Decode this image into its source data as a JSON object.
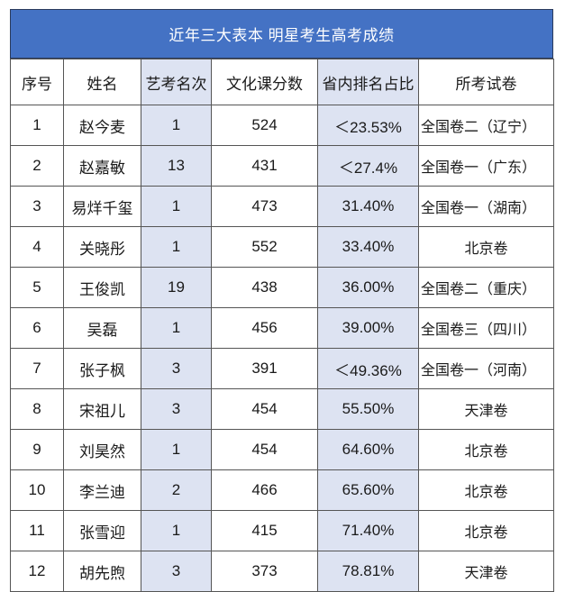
{
  "title": "近年三大表本 明星考生高考成绩",
  "columns": [
    "序号",
    "姓名",
    "艺考名次",
    "文化课分数",
    "省内排名占比",
    "所考试卷"
  ],
  "rows": [
    {
      "seq": "1",
      "name": "赵今麦",
      "art_rank": "1",
      "score": "524",
      "pct": "＜23.53%",
      "paper": "全国卷二（辽宁）"
    },
    {
      "seq": "2",
      "name": "赵嘉敏",
      "art_rank": "13",
      "score": "431",
      "pct": "＜27.4%",
      "paper": "全国卷一（广东）"
    },
    {
      "seq": "3",
      "name": "易烊千玺",
      "art_rank": "1",
      "score": "473",
      "pct": "31.40%",
      "paper": "全国卷一（湖南）"
    },
    {
      "seq": "4",
      "name": "关晓彤",
      "art_rank": "1",
      "score": "552",
      "pct": "33.40%",
      "paper": "北京卷"
    },
    {
      "seq": "5",
      "name": "王俊凯",
      "art_rank": "19",
      "score": "438",
      "pct": "36.00%",
      "paper": "全国卷二（重庆）"
    },
    {
      "seq": "6",
      "name": "吴磊",
      "art_rank": "1",
      "score": "456",
      "pct": "39.00%",
      "paper": "全国卷三（四川）"
    },
    {
      "seq": "7",
      "name": "张子枫",
      "art_rank": "3",
      "score": "391",
      "pct": "＜49.36%",
      "paper": "全国卷一（河南）"
    },
    {
      "seq": "8",
      "name": "宋祖儿",
      "art_rank": "3",
      "score": "454",
      "pct": "55.50%",
      "paper": "天津卷"
    },
    {
      "seq": "9",
      "name": "刘昊然",
      "art_rank": "1",
      "score": "454",
      "pct": "64.60%",
      "paper": "北京卷"
    },
    {
      "seq": "10",
      "name": "李兰迪",
      "art_rank": "2",
      "score": "466",
      "pct": "65.60%",
      "paper": "北京卷"
    },
    {
      "seq": "11",
      "name": "张雪迎",
      "art_rank": "1",
      "score": "415",
      "pct": "71.40%",
      "paper": "北京卷"
    },
    {
      "seq": "12",
      "name": "胡先煦",
      "art_rank": "3",
      "score": "373",
      "pct": "78.81%",
      "paper": "天津卷"
    }
  ],
  "colors": {
    "title_bg": "#4472c4",
    "title_text": "#ffffff",
    "shaded_column": "#dde3f2",
    "border": "#555555"
  }
}
